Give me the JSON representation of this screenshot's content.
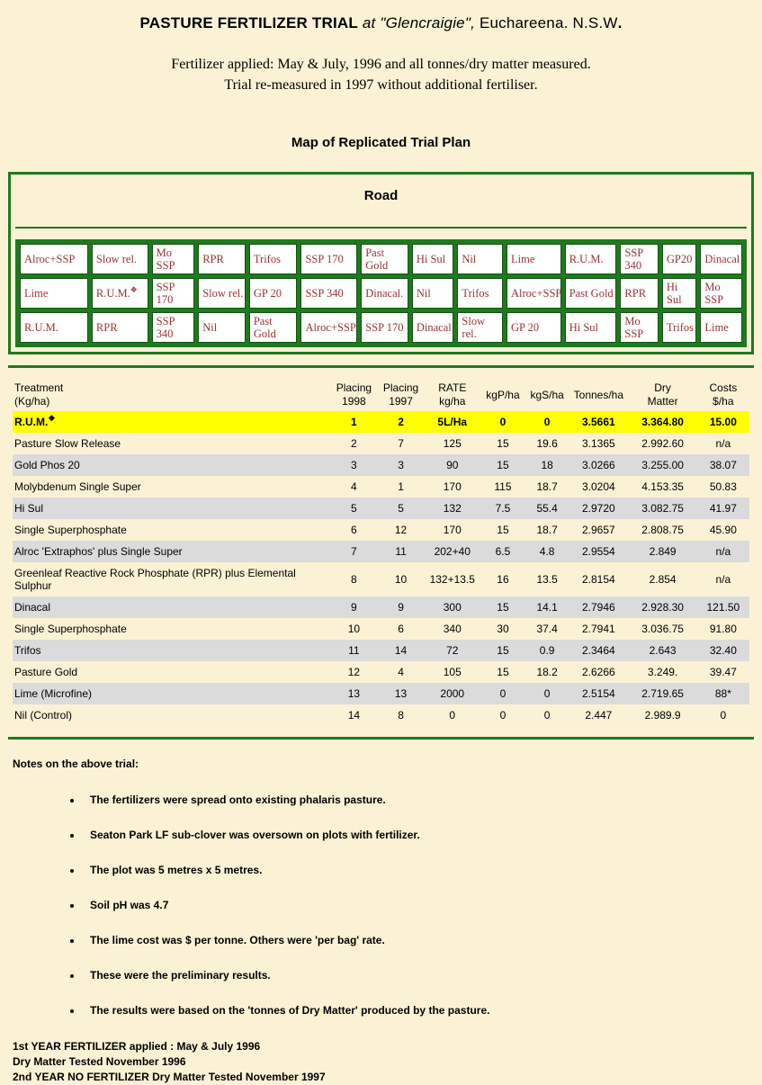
{
  "colors": {
    "bg": "#FBF2D5",
    "green": "#1E7A1E",
    "green-dark": "#145214",
    "maroon": "#993333",
    "yellow": "#FFFF00",
    "shade": "#DBDBDB"
  },
  "header": {
    "title_main": "PASTURE FERTILIZER TRIAL",
    "title_at": "at \"Glencraigie\",",
    "title_location": "Euchareena. N.S.W",
    "title_period": ".",
    "subtitle_line1": "Fertilizer applied: May & July, 1996 and all tonnes/dry matter measured.",
    "subtitle_line2": "Trial re-measured in 1997 without additional fertiliser.",
    "map_title": "Map of Replicated Trial Plan"
  },
  "map": {
    "road_label": "Road",
    "rows": [
      [
        "Alroc+SSP",
        "Slow rel.",
        "Mo SSP",
        "RPR",
        "Trifos",
        "SSP 170",
        "Past Gold",
        "Hi Sul",
        "Nil",
        "Lime",
        "R.U.M.",
        "SSP 340",
        "GP20",
        "Dinacal"
      ],
      [
        "Lime",
        "R.U.M.❖",
        "SSP 170",
        "Slow rel.",
        "GP 20",
        "SSP 340",
        "Dinacal.",
        "Nil",
        "Trifos",
        "Alroc+SSP",
        "Past Gold",
        "RPR",
        "Hi Sul",
        "Mo SSP"
      ],
      [
        "R.U.M.",
        "RPR",
        "SSP 340",
        "Nil",
        "Past Gold",
        "Alroc+SSP",
        "SSP 170",
        "Dinacal",
        "Slow rel.",
        "GP 20",
        "Hi Sul",
        "Mo SSP",
        "Trifos",
        "Lime"
      ]
    ]
  },
  "table": {
    "headers": [
      [
        "Treatment",
        "(Kg/ha)"
      ],
      [
        "Placing",
        "1998"
      ],
      [
        "Placing",
        "1997"
      ],
      [
        "RATE",
        "kg/ha"
      ],
      [
        "kgP/ha"
      ],
      [
        "kgS/ha"
      ],
      [
        "Tonnes/ha"
      ],
      [
        "Dry",
        "Matter"
      ],
      [
        "Costs",
        "$/ha"
      ]
    ],
    "rows": [
      {
        "highlight": true,
        "cells": [
          "R.U.M.❖",
          "1",
          "2",
          "5L/Ha",
          "0",
          "0",
          "3.5661",
          "3.364.80",
          "15.00"
        ]
      },
      {
        "cells": [
          "Pasture Slow Release",
          "2",
          "7",
          "125",
          "15",
          "19.6",
          "3.1365",
          "2.992.60",
          "n/a"
        ]
      },
      {
        "cells": [
          "Gold Phos 20",
          "3",
          "3",
          "90",
          "15",
          "18",
          "3.0266",
          "3.255.00",
          "38.07"
        ]
      },
      {
        "cells": [
          "Molybdenum Single Super",
          "4",
          "1",
          "170",
          "115",
          "18.7",
          "3.0204",
          "4.153.35",
          "50.83"
        ]
      },
      {
        "cells": [
          "Hi Sul",
          "5",
          "5",
          "132",
          "7.5",
          "55.4",
          "2.9720",
          "3.082.75",
          "41.97"
        ]
      },
      {
        "cells": [
          "Single Superphosphate",
          "6",
          "12",
          "170",
          "15",
          "18.7",
          "2.9657",
          "2.808.75",
          "45.90"
        ]
      },
      {
        "cells": [
          "Alroc 'Extraphos' plus Single Super",
          "7",
          "11",
          "202+40",
          "6.5",
          "4.8",
          "2.9554",
          "2.849",
          "n/a"
        ]
      },
      {
        "cells": [
          "Greenleaf Reactive Rock Phosphate (RPR) plus Elemental Sulphur",
          "8",
          "10",
          "132+13.5",
          "16",
          "13.5",
          "2.8154",
          "2.854",
          "n/a"
        ]
      },
      {
        "cells": [
          "Dinacal",
          "9",
          "9",
          "300",
          "15",
          "14.1",
          "2.7946",
          "2.928.30",
          "121.50"
        ]
      },
      {
        "cells": [
          "Single Superphosphate",
          "10",
          "6",
          "340",
          "30",
          "37.4",
          "2.7941",
          "3.036.75",
          "91.80"
        ]
      },
      {
        "cells": [
          "Trifos",
          "11",
          "14",
          "72",
          "15",
          "0.9",
          "2.3464",
          "2.643",
          "32.40"
        ]
      },
      {
        "cells": [
          "Pasture Gold",
          "12",
          "4",
          "105",
          "15",
          "18.2",
          "2.6266",
          "3.249.",
          "39.47"
        ]
      },
      {
        "cells": [
          "Lime (Microfine)",
          "13",
          "13",
          "2000",
          "0",
          "0",
          "2.5154",
          "2.719.65",
          "88*"
        ]
      },
      {
        "cells": [
          "Nil (Control)",
          "14",
          "8",
          "0",
          "0",
          "0",
          "2.447",
          "2.989.9",
          "0"
        ]
      }
    ]
  },
  "notes": {
    "heading": "Notes on the above trial:",
    "items": [
      "The fertilizers were spread onto existing phalaris pasture.",
      "Seaton Park LF sub-clover was oversown on plots with fertilizer.",
      "The plot was 5 metres x 5 metres.",
      "Soil pH was 4.7",
      "The lime cost was $ per tonne. Others were 'per bag' rate.",
      "These were the preliminary results.",
      "The results were based on the 'tonnes of Dry Matter' produced by the pasture."
    ]
  },
  "footer": {
    "lines": [
      "1st YEAR FERTILIZER applied : May & July 1996",
      "Dry Matter Tested November 1996",
      "2nd YEAR NO FERTILIZER Dry Matter Tested November 1997"
    ]
  }
}
